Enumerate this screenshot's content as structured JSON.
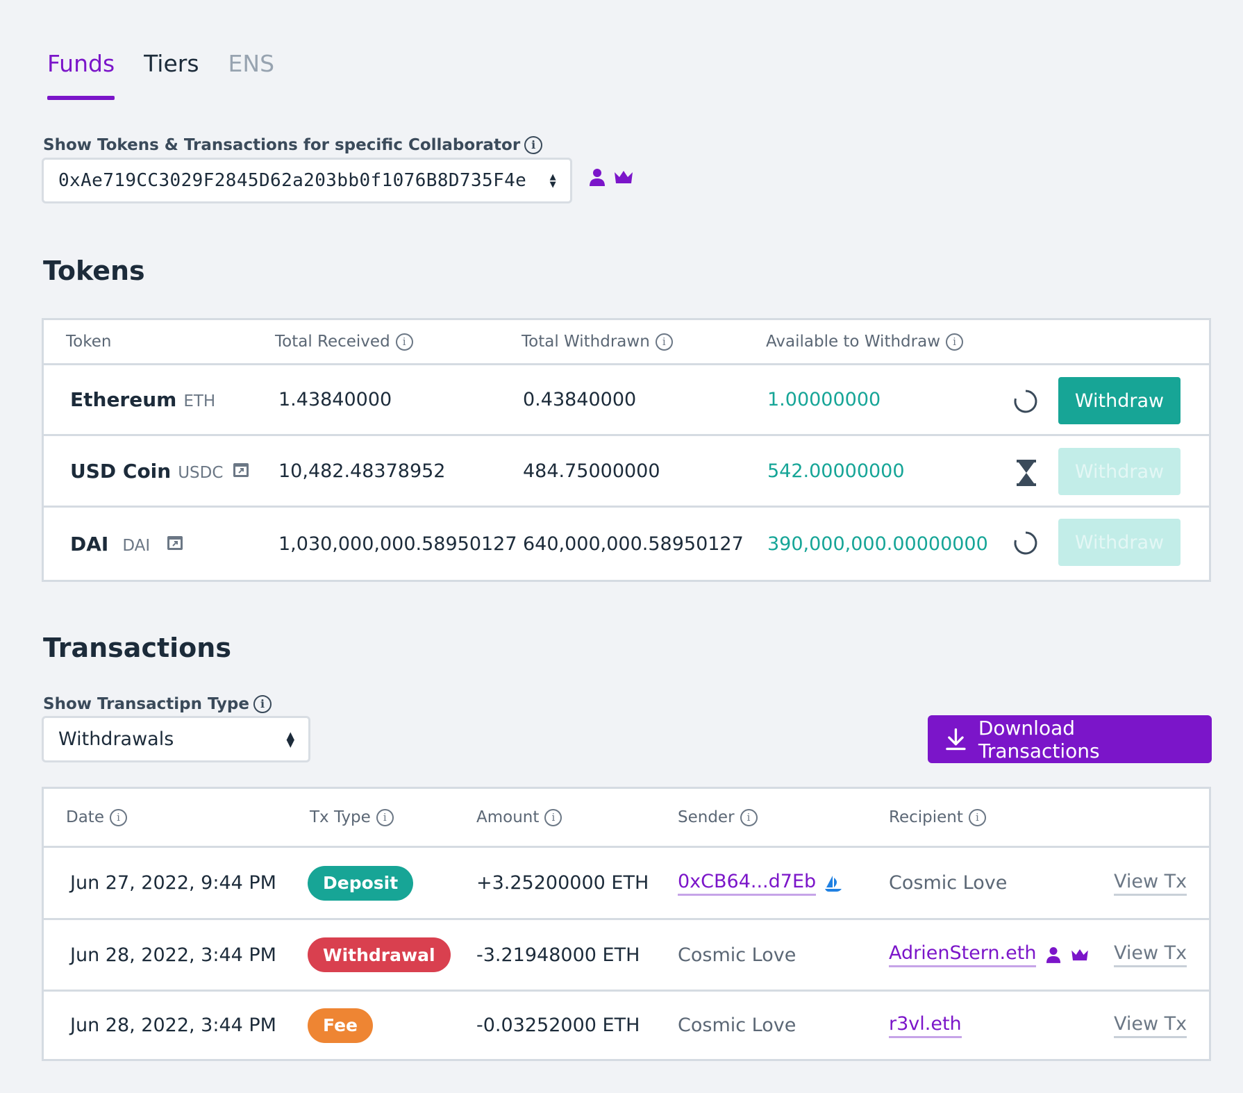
{
  "tabs": [
    {
      "label": "Funds",
      "state": "active"
    },
    {
      "label": "Tiers",
      "state": "normal"
    },
    {
      "label": "ENS",
      "state": "disabled"
    }
  ],
  "collaborator": {
    "label": "Show Tokens & Transactions for specific Collaborator",
    "value": "0xAe719CC3029F2845D62a203bb0f1076B8D735F4e",
    "icons": [
      "person-icon",
      "crown-icon"
    ]
  },
  "tokens": {
    "title": "Tokens",
    "headers": {
      "token": "Token",
      "received": "Total Received",
      "withdrawn": "Total Withdrawn",
      "available": "Available to Withdraw"
    },
    "rows": [
      {
        "name": "Ethereum",
        "symbol": "ETH",
        "external": false,
        "received": "1.43840000",
        "withdrawn": "0.43840000",
        "available": "1.00000000",
        "status_icon": "circle-icon",
        "button": "Withdraw",
        "enabled": true
      },
      {
        "name": "USD Coin",
        "symbol": "USDC",
        "external": true,
        "received": "10,482.48378952",
        "withdrawn": "484.75000000",
        "available": "542.00000000",
        "status_icon": "hourglass-icon",
        "button": "Withdraw",
        "enabled": false
      },
      {
        "name": "DAI",
        "symbol": "DAI",
        "external": true,
        "received": "1,030,000,000.58950127",
        "withdrawn": "640,000,000.58950127",
        "available": "390,000,000.00000000",
        "status_icon": "circle-icon",
        "button": "Withdraw",
        "enabled": false
      }
    ]
  },
  "transactions": {
    "title": "Transactions",
    "type_label": "Show Transactipn Type",
    "type_value": "Withdrawals",
    "download_label": "Download Transactions",
    "headers": {
      "date": "Date",
      "type": "Tx Type",
      "amount": "Amount",
      "sender": "Sender",
      "recipient": "Recipient"
    },
    "rows": [
      {
        "date": "Jun 27, 2022, 9:44 PM",
        "type": "Deposit",
        "type_color": "#17a596",
        "amount": "+3.25200000 ETH",
        "sender": "0xCB64...d7Eb",
        "sender_link": true,
        "sender_icon": "opensea-icon",
        "recipient": "Cosmic Love",
        "recipient_link": false,
        "view": "View Tx"
      },
      {
        "date": "Jun 28, 2022, 3:44 PM",
        "type": "Withdrawal",
        "type_color": "#d9404f",
        "amount": "-3.21948000 ETH",
        "sender": "Cosmic Love",
        "sender_link": false,
        "recipient": "AdrienStern.eth",
        "recipient_link": true,
        "recipient_icons": [
          "person-icon",
          "crown-icon"
        ],
        "view": "View Tx"
      },
      {
        "date": "Jun 28, 2022, 3:44 PM",
        "type": "Fee",
        "type_color": "#ee8533",
        "amount": "-0.03252000 ETH",
        "sender": "Cosmic Love",
        "sender_link": false,
        "recipient": "r3vl.eth",
        "recipient_link": true,
        "view": "View Tx"
      }
    ]
  },
  "colors": {
    "accent": "#7b15c9",
    "success": "#17a596",
    "danger": "#d9404f",
    "warning": "#ee8533"
  }
}
